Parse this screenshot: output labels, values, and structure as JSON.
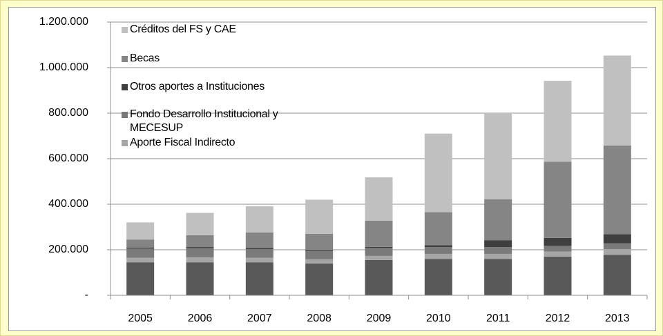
{
  "chart_data": {
    "type": "stacked-bar",
    "categories": [
      "2005",
      "2006",
      "2007",
      "2008",
      "2009",
      "2010",
      "2011",
      "2012",
      "2013"
    ],
    "series": [
      {
        "color": "#595959",
        "values": [
          145000,
          145000,
          145000,
          140000,
          155000,
          160000,
          160000,
          170000,
          178000
        ]
      },
      {
        "name": "Aporte Fiscal Indirecto",
        "color": "#a6a6a6",
        "values": [
          20000,
          22000,
          20000,
          18000,
          18000,
          22000,
          22000,
          22000,
          25000
        ]
      },
      {
        "name": "Fondo Desarrollo Institucional y MECESUP",
        "color": "#7a7a7a",
        "values": [
          40000,
          40000,
          38000,
          35000,
          35000,
          30000,
          30000,
          25000,
          25000
        ]
      },
      {
        "name": "Otros aportes a Instituciones",
        "color": "#3f3f3f",
        "values": [
          5000,
          5000,
          5000,
          5000,
          5000,
          8000,
          30000,
          35000,
          40000
        ]
      },
      {
        "name": "Becas",
        "color": "#858585",
        "values": [
          35000,
          52000,
          68000,
          72000,
          115000,
          145000,
          180000,
          335000,
          390000
        ]
      },
      {
        "name": "Créditos del FS y CAE",
        "color": "#c0c0c0",
        "values": [
          75000,
          98000,
          115000,
          150000,
          190000,
          345000,
          375000,
          355000,
          395000
        ]
      }
    ],
    "ylim": [
      0,
      1200000
    ],
    "yticks": [
      {
        "value": 0,
        "label": "-"
      },
      {
        "value": 200000,
        "label": "200.000"
      },
      {
        "value": 400000,
        "label": "400.000"
      },
      {
        "value": 600000,
        "label": "600.000"
      },
      {
        "value": 800000,
        "label": "800.000"
      },
      {
        "value": 1000000,
        "label": "1.000.000"
      },
      {
        "value": 1200000,
        "label": "1.200.000"
      }
    ],
    "grid": true
  }
}
